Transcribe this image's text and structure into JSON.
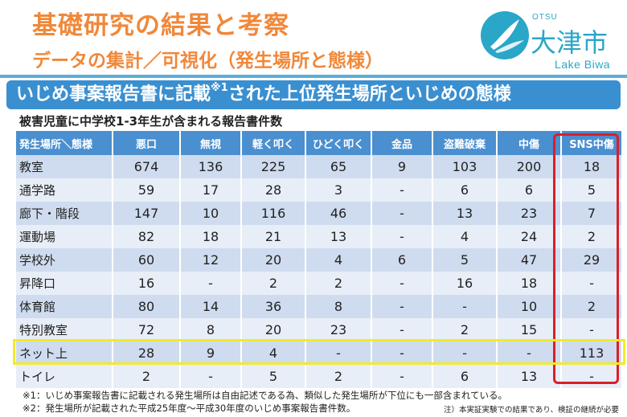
{
  "header": {
    "title": "基礎研究の結果と考察",
    "subtitle": "データの集計／可視化（発生場所と態様）"
  },
  "logo": {
    "small": "OTSU",
    "kanji": "大津市",
    "english": "Lake Biwa"
  },
  "banner": {
    "text_a": "いじめ事案報告書に記載",
    "sup": "※1",
    "text_b": "された上位発生場所といじめの態様"
  },
  "subheading": "被害児童に中学校1-3年生が含まれる報告書件数",
  "table": {
    "headers": [
      "発生場所＼態様",
      "悪口",
      "無視",
      "軽く叩く",
      "ひどく叩く",
      "金品",
      "盗難破棄",
      "中傷",
      "SNS中傷"
    ],
    "rows": [
      [
        "教室",
        "674",
        "136",
        "225",
        "65",
        "9",
        "103",
        "200",
        "18"
      ],
      [
        "通学路",
        "59",
        "17",
        "28",
        "3",
        "-",
        "6",
        "6",
        "5"
      ],
      [
        "廊下・階段",
        "147",
        "10",
        "116",
        "46",
        "-",
        "13",
        "23",
        "7"
      ],
      [
        "運動場",
        "82",
        "18",
        "21",
        "13",
        "-",
        "4",
        "24",
        "2"
      ],
      [
        "学校外",
        "60",
        "12",
        "20",
        "4",
        "6",
        "5",
        "47",
        "29"
      ],
      [
        "昇降口",
        "16",
        "-",
        "2",
        "2",
        "-",
        "16",
        "18",
        "-"
      ],
      [
        "体育館",
        "80",
        "14",
        "36",
        "8",
        "-",
        "-",
        "10",
        "2"
      ],
      [
        "特別教室",
        "72",
        "8",
        "20",
        "23",
        "-",
        "2",
        "15",
        "-"
      ],
      [
        "ネット上",
        "28",
        "9",
        "4",
        "-",
        "-",
        "-",
        "-",
        "113"
      ],
      [
        "トイレ",
        "2",
        "-",
        "5",
        "2",
        "-",
        "6",
        "13",
        "-"
      ]
    ]
  },
  "notes": {
    "note1": "※1：いじめ事案報告書に記載される発生場所は自由記述である為、類似した発生場所が下位にも一部含まれている。",
    "note2": "※2：発生場所が記載された平成25年度～平成30年度のいじめ事案報告書件数。",
    "disclaimer": "注）本実証実験での結果であり、検証の継続が必要"
  },
  "colors": {
    "title": "#f0883a",
    "banner": "#3a8fd0",
    "table_header": "#4a8fd0",
    "highlight_column": "#d8202a",
    "highlight_row": "#f2ea2a"
  }
}
